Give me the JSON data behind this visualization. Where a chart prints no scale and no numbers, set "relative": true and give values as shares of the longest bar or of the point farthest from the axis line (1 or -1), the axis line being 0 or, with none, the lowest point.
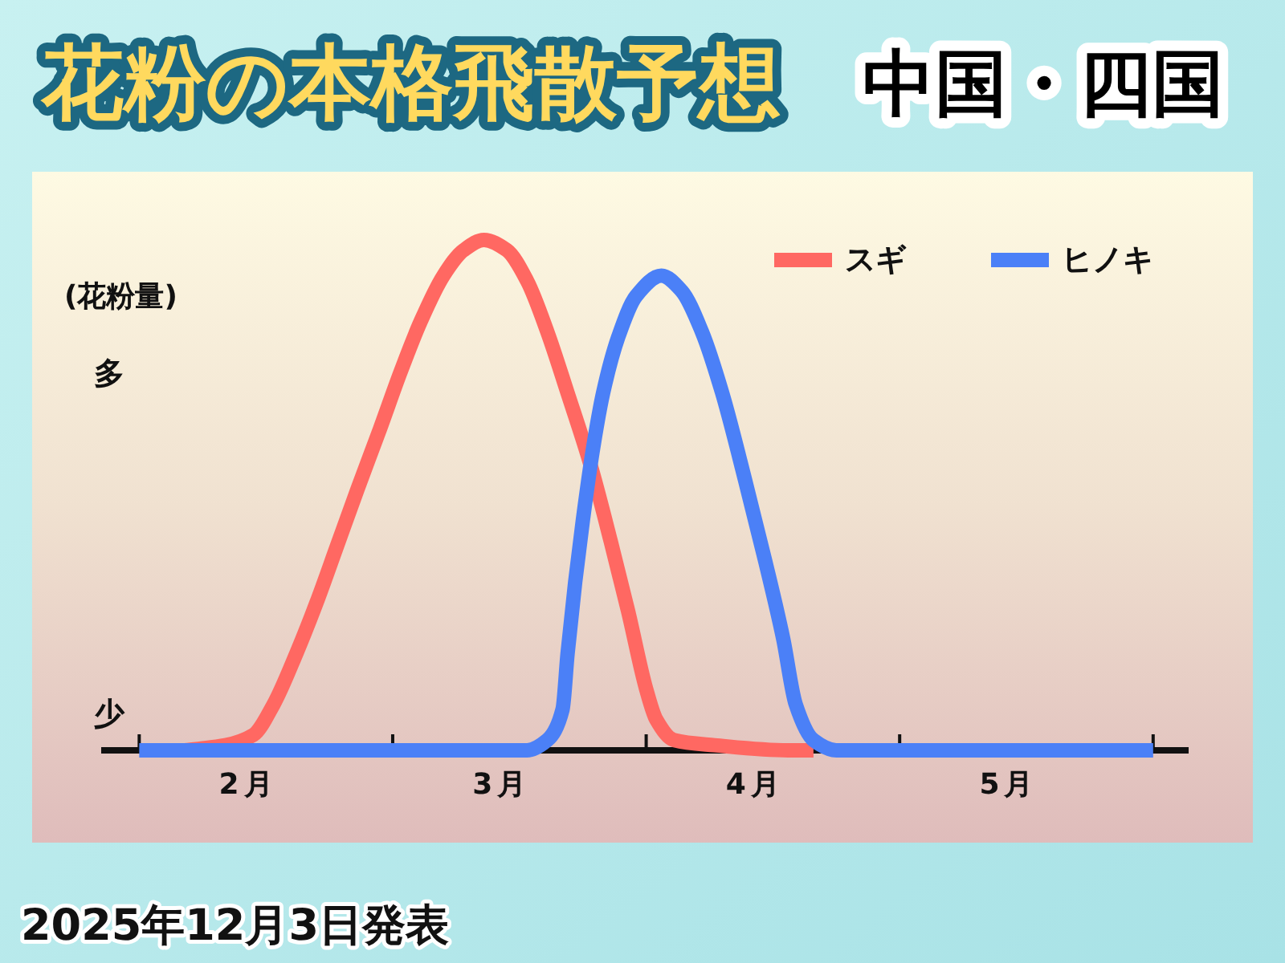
{
  "chart_data": {
    "type": "line",
    "title": "花粉の本格飛散予想",
    "subtitle": "中国・四国",
    "ylabel": "(花粉量)",
    "relative": true,
    "legend": "top right",
    "xlim": [
      1.85,
      6.14
    ],
    "xticks": [
      {
        "value": 2,
        "label": null
      },
      {
        "value": 2.43,
        "label": "2月"
      },
      {
        "value": 3,
        "label": null
      },
      {
        "value": 3.43,
        "label": "3月"
      },
      {
        "value": 4,
        "label": null
      },
      {
        "value": 4.43,
        "label": "4月"
      },
      {
        "value": 5,
        "label": null
      },
      {
        "value": 5.43,
        "label": "5月"
      },
      {
        "value": 6,
        "label": null
      }
    ],
    "series": [
      {
        "name": "スギ",
        "color": "#ff6862",
        "x": [
          2.18,
          2.34,
          2.45,
          2.53,
          2.62,
          2.7,
          2.78,
          2.86,
          2.95,
          3.03,
          3.11,
          3.2,
          3.28,
          3.36,
          3.45,
          3.53,
          3.61,
          3.69,
          3.78,
          3.86,
          3.93,
          4,
          4.04,
          4.11,
          4.27,
          4.56,
          4.66
        ],
        "values": [
          0,
          0.01,
          0.03,
          0.09,
          0.19,
          0.29,
          0.4,
          0.51,
          0.63,
          0.74,
          0.84,
          0.93,
          0.98,
          1,
          0.98,
          0.92,
          0.82,
          0.7,
          0.56,
          0.41,
          0.27,
          0.12,
          0.06,
          0.02,
          0.01,
          0,
          0
        ]
      },
      {
        "name": "ヒノキ",
        "color": "#4b80f7",
        "x": [
          2,
          3.53,
          3.61,
          3.67,
          3.69,
          3.72,
          3.75,
          3.79,
          3.83,
          3.89,
          3.96,
          4.06,
          4.14,
          4.22,
          4.3,
          4.39,
          4.47,
          4.54,
          4.59,
          4.66,
          4.75,
          6
        ],
        "values": [
          0,
          0,
          0.02,
          0.08,
          0.19,
          0.33,
          0.45,
          0.59,
          0.7,
          0.81,
          0.89,
          0.93,
          0.9,
          0.82,
          0.7,
          0.53,
          0.37,
          0.22,
          0.09,
          0.02,
          0,
          0
        ]
      }
    ],
    "annotations": [
      "多",
      "少",
      "2025年12月3日発表"
    ]
  }
}
